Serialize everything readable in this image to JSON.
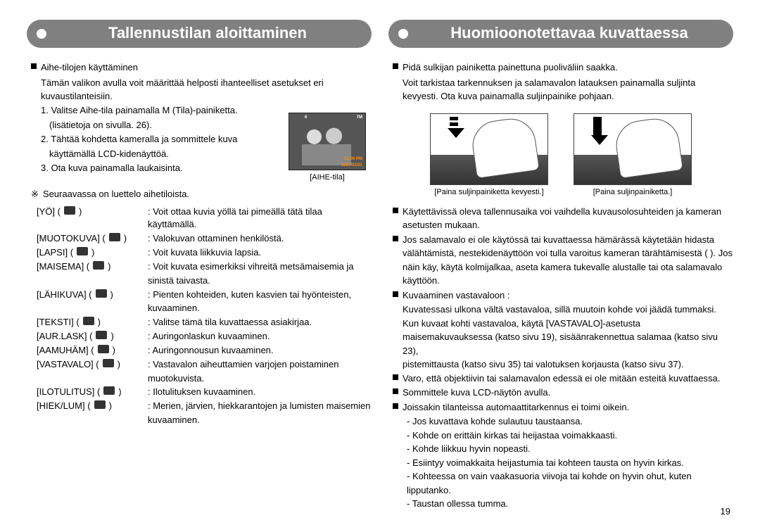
{
  "page_number": "19",
  "left": {
    "title": "Tallennustilan aloittaminen",
    "intro_bullet": "Aihe-tilojen käyttäminen",
    "intro_text": "Tämän valikon avulla voit määrittää helposti ihanteelliset asetukset eri kuvaustilanteisiin.",
    "steps": [
      "1. Valitse Aihe-tila painamalla M (Tila)-painiketta.",
      "(lisätietoja on sivulla. 26).",
      "2. Tähtää kohdetta kameralla ja sommittele kuva",
      "käyttämällä LCD-kidenäyttöä.",
      "3. Ota kuva painamalla laukaisinta."
    ],
    "lcd_caption": "[AIHE-tila]",
    "lcd_overlays": {
      "top_left": "6",
      "right_top": "7M",
      "time": "01:00 PM",
      "date": "2007/02/01"
    },
    "scene_intro": "Seuraavassa on luettelo aihetiloista.",
    "scenes": [
      {
        "label": "[YÖ]",
        "desc": ": Voit ottaa kuvia yöllä tai pimeällä tätä tilaa käyttämällä."
      },
      {
        "label": "[MUOTOKUVA]",
        "desc": ": Valokuvan ottaminen henkilöstä."
      },
      {
        "label": "[LAPSI]",
        "desc": ": Voit kuvata liikkuvia lapsia."
      },
      {
        "label": "[MAISEMA]",
        "desc": ": Voit kuvata esimerkiksi vihreitä metsämaisemia ja",
        "desc2": "sinistä taivasta."
      },
      {
        "label": "[LÄHIKUVA]",
        "desc": ": Pienten kohteiden, kuten kasvien tai hyönteisten,",
        "desc2": "kuvaaminen."
      },
      {
        "label": "[TEKSTI]",
        "desc": ": Valitse tämä tila kuvattaessa asiakirjaa."
      },
      {
        "label": "[AUR.LASK]",
        "desc": ": Auringonlaskun kuvaaminen."
      },
      {
        "label": "[AAMUHÄM]",
        "desc": ": Auringonnousun kuvaaminen."
      },
      {
        "label": "[VASTAVALO]",
        "desc": ": Vastavalon aiheuttamien varjojen poistaminen",
        "desc2": "muotokuvista."
      },
      {
        "label": "[ILOTULITUS]",
        "desc": ": Ilotulituksen kuvaaminen."
      },
      {
        "label": "[HIEK/LUM]",
        "desc": ": Merien, järvien, hiekkarantojen ja lumisten maisemien",
        "desc2": "kuvaaminen."
      }
    ]
  },
  "right": {
    "title": "Huomioonotettavaa kuvattaessa",
    "top_bullet": "Pidä sulkijan painiketta painettuna puoliväliin saakka.",
    "top_text": "Voit tarkistaa tarkennuksen ja salamavalon latauksen painamalla suljinta kevyesti. Ota kuva painamalla suljinpainike pohjaan.",
    "fig_caps": [
      "[Paina suljinpainiketta kevyesti.]",
      "[Paina suljinpainiketta.]"
    ],
    "bullets": [
      "Käytettävissä oleva tallennusaika voi vaihdella kuvausolosuhteiden ja kameran asetusten mukaan.",
      "Jos salamavalo ei ole käytössä tai kuvattaessa hämärässä käytetään hidasta välähtämistä, nestekidenäyttöön voi tulla varoitus kameran tärähtämisestä (        ). Jos näin käy, käytä kolmijalkaa, aseta kamera tukevalle alustalle tai ota salamavalo käyttöön.",
      "Kuvaaminen vastavaloon :",
      "Varo, että objektiivin tai salamavalon edessä ei ole mitään esteitä kuvattaessa.",
      "Sommittele kuva LCD-näytön avulla.",
      "Joissakin tilanteissa automaattitarkennus ei toimi oikein."
    ],
    "backlight_lines": [
      "Kuvatessasi ulkona vältä vastavaloa, sillä muutoin kohde voi jäädä tummaksi.",
      "Kun kuvaat kohti vastavaloa, käytä [VASTAVALO]-asetusta",
      "maisemakuvauksessa (katso sivu 19), sisäänrakennettua salamaa (katso sivu 23),",
      "pistemittausta (katso sivu 35) tai valotuksen korjausta (katso sivu 37)."
    ],
    "af_sub": [
      "- Jos kuvattava kohde sulautuu taustaansa.",
      "- Kohde on erittäin kirkas tai heijastaa voimakkaasti.",
      "- Kohde liikkuu hyvin nopeasti.",
      "- Esiintyy voimakkaita heijastumia tai kohteen tausta on hyvin kirkas.",
      "- Kohteessa on vain vaakasuoria viivoja tai kohde on hyvin ohut, kuten lipputanko.",
      "- Taustan ollessa tumma."
    ]
  }
}
